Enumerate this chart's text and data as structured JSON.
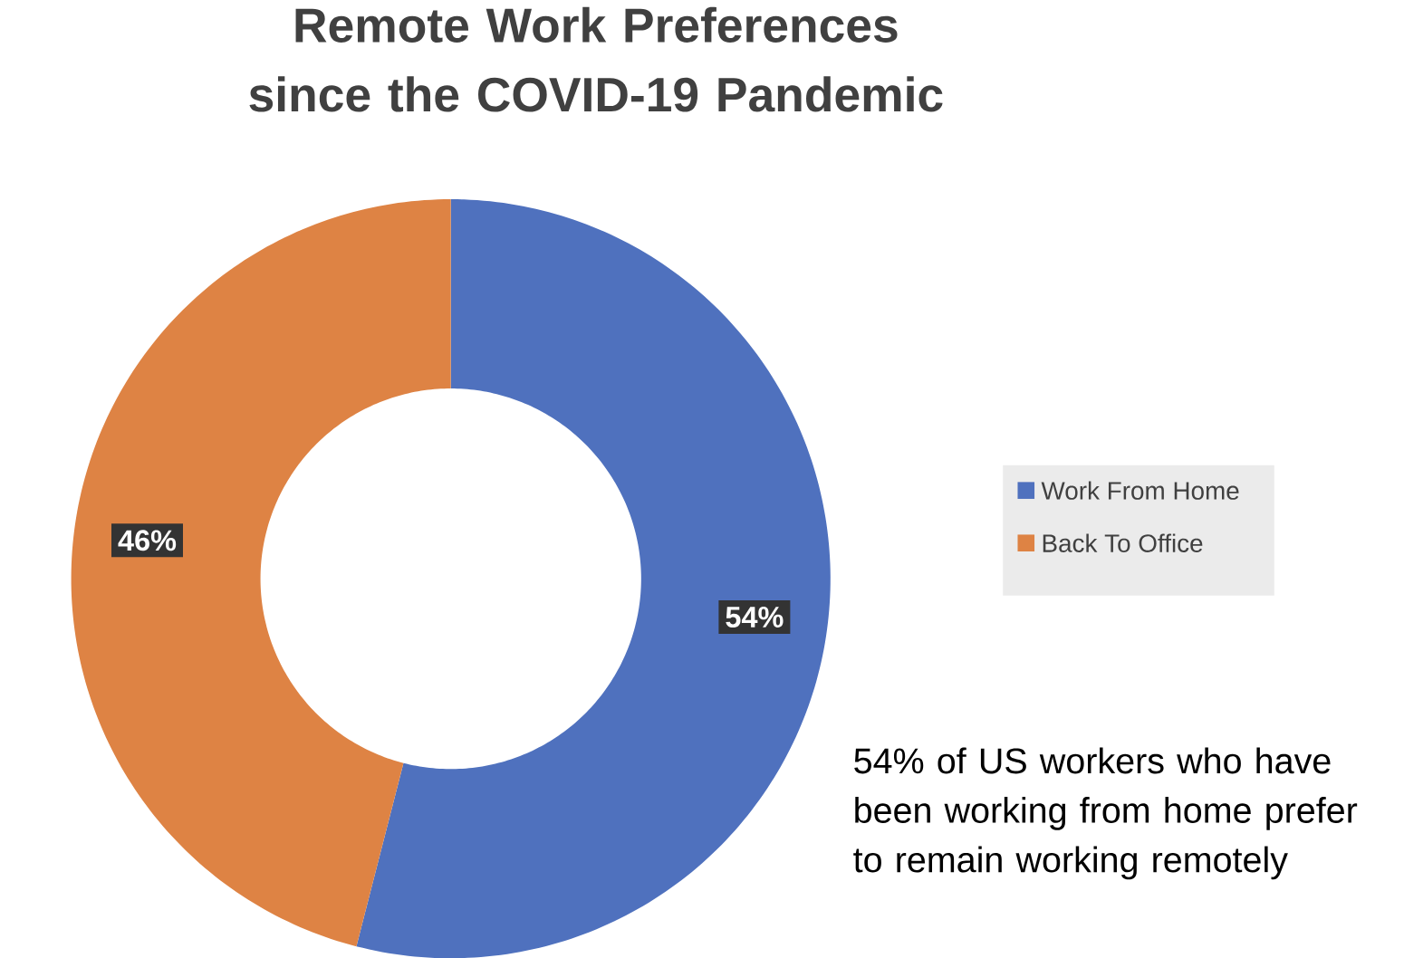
{
  "chart_data": {
    "type": "donut",
    "title": "Remote Work Preferences since the COVID-19 Pandemic",
    "categories": [
      "Work From Home",
      "Back To Office"
    ],
    "values": [
      54,
      46
    ],
    "colors": [
      "#4f71be",
      "#de8344"
    ],
    "value_labels": [
      "54%",
      "46%"
    ],
    "legend": "right",
    "annotations": [
      "54% of US workers who have been working from home prefer to remain working remotely"
    ]
  }
}
